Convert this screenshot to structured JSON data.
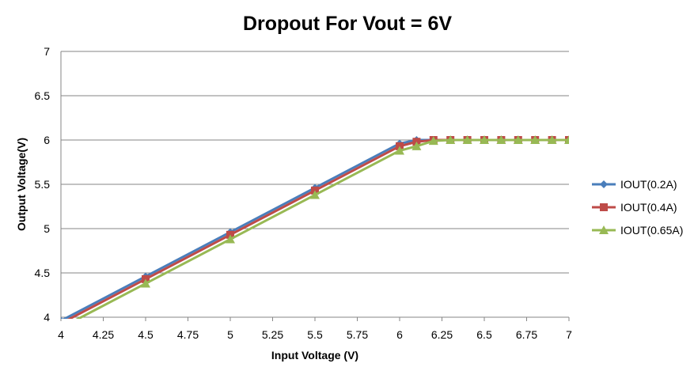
{
  "chart_data": {
    "type": "line",
    "title": "Dropout For Vout = 6V",
    "xlabel": "Input Voltage (V)",
    "ylabel": "Output Voltage(V)",
    "xlim": [
      4,
      7
    ],
    "ylim": [
      4,
      7
    ],
    "xticks": [
      "4",
      "4.25",
      "4.5",
      "4.75",
      "5",
      "5.25",
      "5.5",
      "5.75",
      "6",
      "6.25",
      "6.5",
      "6.75",
      "7"
    ],
    "yticks": [
      "4",
      "4.5",
      "5",
      "5.5",
      "6",
      "6.5",
      "7"
    ],
    "grid": "horizontal",
    "legend_position": "right",
    "series": [
      {
        "name": "IOUT(0.2A)",
        "color": "#4a7ebb",
        "marker": "diamond",
        "x": [
          4,
          4.5,
          5,
          5.5,
          6,
          6.1,
          6.2,
          6.3,
          6.4,
          6.5,
          6.6,
          6.7,
          6.8,
          6.9,
          7
        ],
        "y": [
          3.96,
          4.46,
          4.96,
          5.46,
          5.96,
          6,
          6,
          6,
          6,
          6,
          6,
          6,
          6,
          6,
          6
        ]
      },
      {
        "name": "IOUT(0.4A)",
        "color": "#be4b48",
        "marker": "square",
        "x": [
          4,
          4.5,
          5,
          5.5,
          6,
          6.1,
          6.2,
          6.3,
          6.4,
          6.5,
          6.6,
          6.7,
          6.8,
          6.9,
          7
        ],
        "y": [
          3.93,
          4.43,
          4.93,
          5.43,
          5.93,
          5.98,
          6,
          6,
          6,
          6,
          6,
          6,
          6,
          6,
          6
        ]
      },
      {
        "name": "IOUT(0.65A)",
        "color": "#98b954",
        "marker": "triangle",
        "x": [
          4,
          4.5,
          5,
          5.5,
          6,
          6.1,
          6.2,
          6.3,
          6.4,
          6.5,
          6.6,
          6.7,
          6.8,
          6.9,
          7
        ],
        "y": [
          3.88,
          4.38,
          4.88,
          5.38,
          5.88,
          5.93,
          5.99,
          6,
          6,
          6,
          6,
          6,
          6,
          6,
          6
        ]
      }
    ]
  }
}
